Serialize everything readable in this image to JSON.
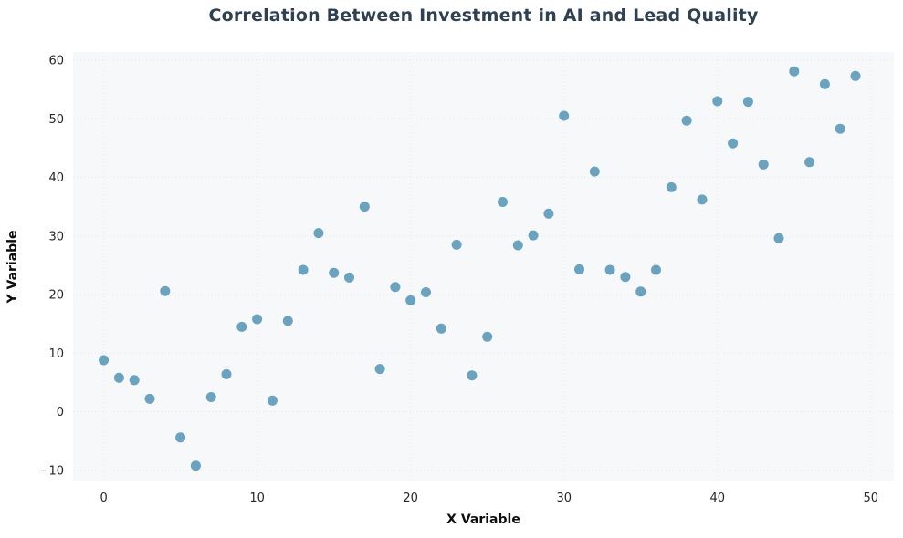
{
  "chart_data": {
    "type": "scatter",
    "title": "Correlation Between Investment in AI and Lead Quality",
    "xlabel": "X Variable",
    "ylabel": "Y Variable",
    "xlim": [
      -2,
      51.5
    ],
    "ylim": [
      -11.9,
      61.4
    ],
    "xticks": [
      0,
      10,
      20,
      30,
      40,
      50
    ],
    "yticks": [
      -10,
      0,
      10,
      20,
      30,
      40,
      50,
      60
    ],
    "grid": true,
    "grid_style": "dotted",
    "legend": false,
    "plot_bg_color": "#f6f8fa",
    "grid_color": "#e3e9ee",
    "marker_color": "#6aa3bf",
    "marker_radius": 5.5,
    "title_color": "#2e4053",
    "points": [
      [
        0,
        8.8
      ],
      [
        1,
        5.8
      ],
      [
        2,
        5.4
      ],
      [
        3,
        2.2
      ],
      [
        4,
        20.6
      ],
      [
        5,
        -4.4
      ],
      [
        6,
        -9.2
      ],
      [
        7,
        2.5
      ],
      [
        8,
        6.4
      ],
      [
        9,
        14.5
      ],
      [
        10,
        15.8
      ],
      [
        11,
        1.9
      ],
      [
        12,
        15.5
      ],
      [
        13,
        24.2
      ],
      [
        14,
        30.5
      ],
      [
        15,
        23.7
      ],
      [
        16,
        22.9
      ],
      [
        17,
        35.0
      ],
      [
        18,
        7.3
      ],
      [
        19,
        21.3
      ],
      [
        20,
        19.0
      ],
      [
        21,
        20.4
      ],
      [
        22,
        14.2
      ],
      [
        23,
        28.5
      ],
      [
        24,
        6.2
      ],
      [
        25,
        12.8
      ],
      [
        26,
        35.8
      ],
      [
        27,
        28.4
      ],
      [
        28,
        30.1
      ],
      [
        29,
        33.8
      ],
      [
        30,
        50.5
      ],
      [
        31,
        24.3
      ],
      [
        32,
        41.0
      ],
      [
        33,
        24.2
      ],
      [
        34,
        23.0
      ],
      [
        35,
        20.5
      ],
      [
        36,
        24.2
      ],
      [
        37,
        38.3
      ],
      [
        38,
        49.7
      ],
      [
        39,
        36.2
      ],
      [
        40,
        53.0
      ],
      [
        41,
        45.8
      ],
      [
        42,
        52.9
      ],
      [
        43,
        42.2
      ],
      [
        44,
        29.6
      ],
      [
        45,
        58.1
      ],
      [
        46,
        42.6
      ],
      [
        47,
        55.9
      ],
      [
        48,
        48.3
      ],
      [
        49,
        57.3
      ]
    ]
  }
}
